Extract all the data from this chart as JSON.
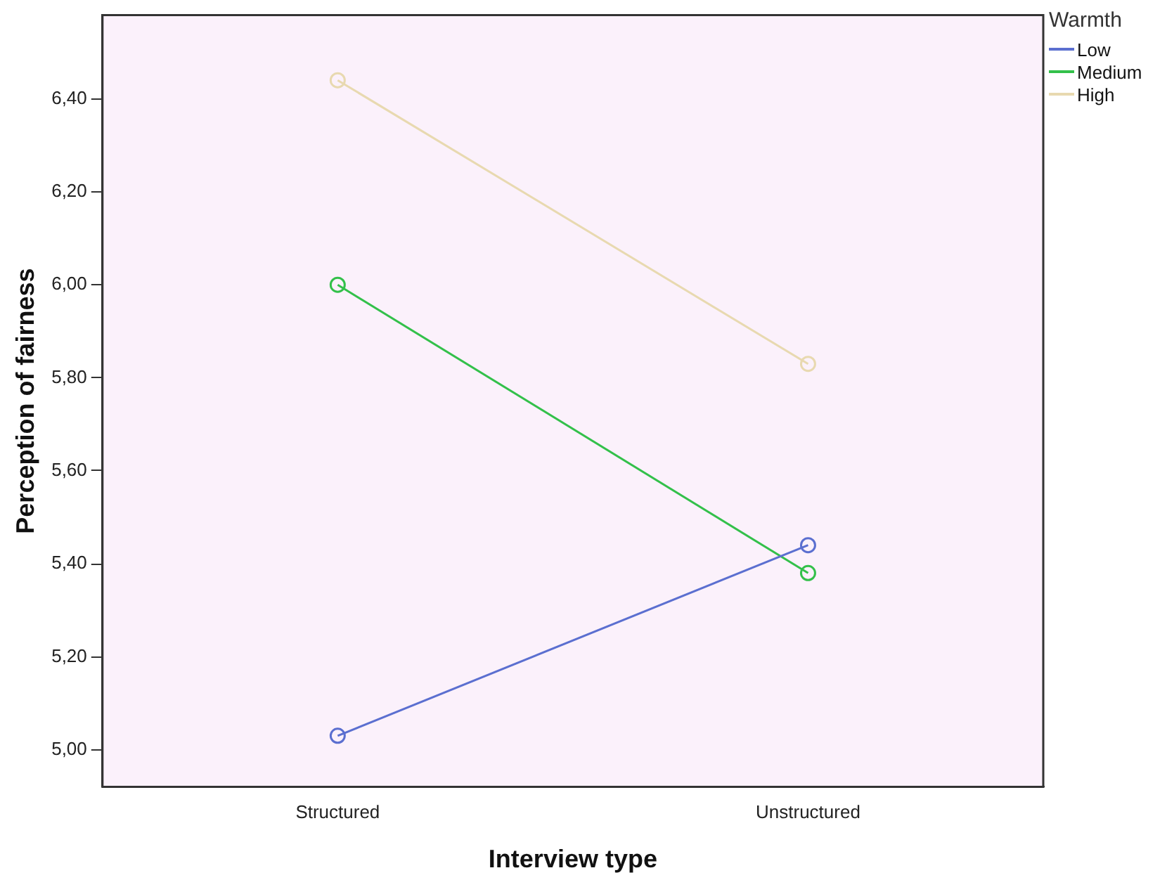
{
  "chart_data": {
    "type": "line",
    "xlabel": "Interview type",
    "ylabel": "Perception of fairness",
    "legend_title": "Warmth",
    "categories": [
      "Structured",
      "Unstructured"
    ],
    "series": [
      {
        "name": "Low",
        "color": "#5b6fd0",
        "values": [
          5.03,
          5.44
        ]
      },
      {
        "name": "Medium",
        "color": "#33c04a",
        "values": [
          6.0,
          5.38
        ]
      },
      {
        "name": "High",
        "color": "#e8d9b0",
        "values": [
          6.44,
          5.83
        ]
      }
    ],
    "ylim": [
      4.92,
      6.58
    ],
    "yticks": [
      {
        "value": 5.0,
        "label": "5,00"
      },
      {
        "value": 5.2,
        "label": "5,20"
      },
      {
        "value": 5.4,
        "label": "5,40"
      },
      {
        "value": 5.6,
        "label": "5,60"
      },
      {
        "value": 5.8,
        "label": "5,80"
      },
      {
        "value": 6.0,
        "label": "6,00"
      },
      {
        "value": 6.2,
        "label": "6,20"
      },
      {
        "value": 6.4,
        "label": "6,40"
      }
    ],
    "grid": false,
    "legend": "top right",
    "marker": "circle",
    "line_style": "solid"
  }
}
